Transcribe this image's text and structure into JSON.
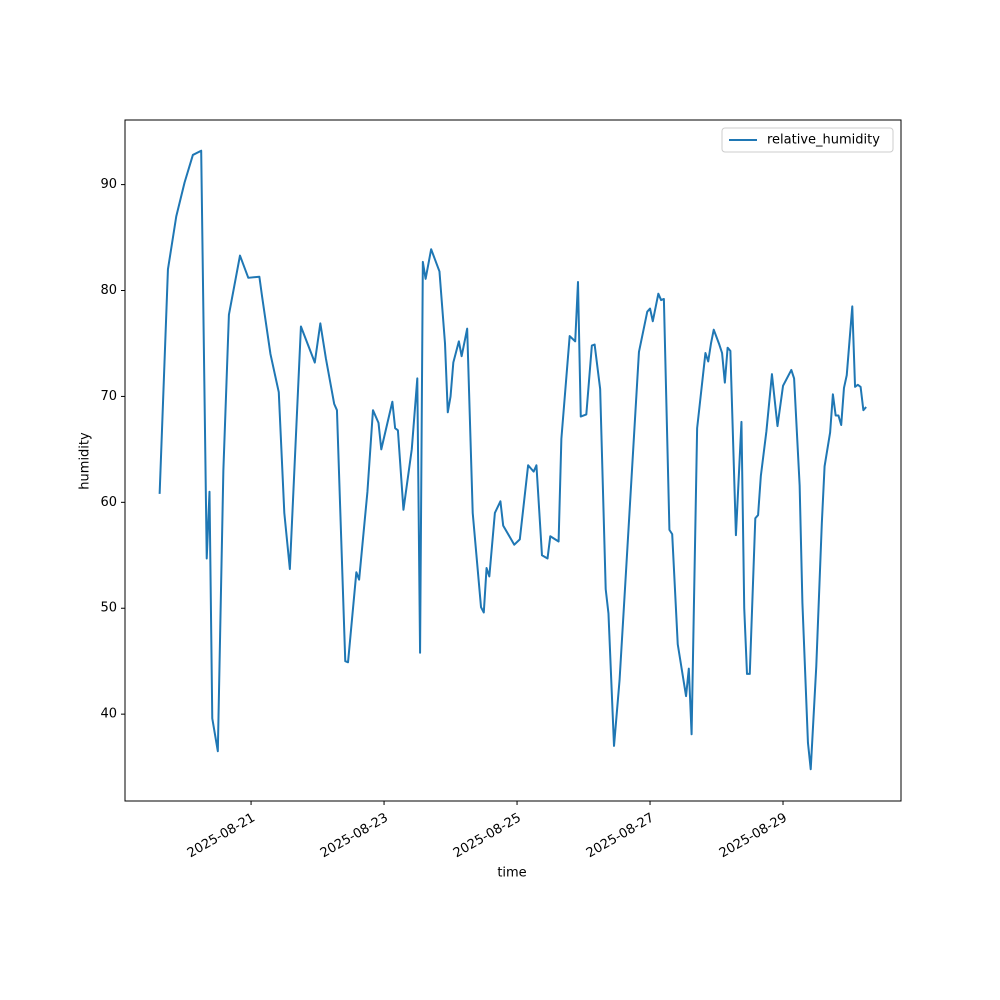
{
  "chart_data": {
    "type": "line",
    "x_label": "time",
    "y_label": "humidity",
    "x": [
      "2025-08-19 15:00",
      "2025-08-19 18:00",
      "2025-08-19 21:00",
      "2025-08-20 00:00",
      "2025-08-20 03:00",
      "2025-08-20 06:00",
      "2025-08-20 08:00",
      "2025-08-20 09:00",
      "2025-08-20 10:00",
      "2025-08-20 12:00",
      "2025-08-20 14:00",
      "2025-08-20 16:00",
      "2025-08-20 20:00",
      "2025-08-20 23:00",
      "2025-08-21 03:00",
      "2025-08-21 04:00",
      "2025-08-21 07:00",
      "2025-08-21 10:00",
      "2025-08-21 12:00",
      "2025-08-21 14:00",
      "2025-08-21 18:00",
      "2025-08-21 23:00",
      "2025-08-22 01:00",
      "2025-08-22 03:00",
      "2025-08-22 06:00",
      "2025-08-22 07:00",
      "2025-08-22 10:00",
      "2025-08-22 11:00",
      "2025-08-22 14:00",
      "2025-08-22 15:00",
      "2025-08-22 18:00",
      "2025-08-22 20:00",
      "2025-08-22 22:00",
      "2025-08-22 23:00",
      "2025-08-23 03:00",
      "2025-08-23 04:00",
      "2025-08-23 05:00",
      "2025-08-23 07:00",
      "2025-08-23 10:00",
      "2025-08-23 12:00",
      "2025-08-23 13:00",
      "2025-08-23 14:00",
      "2025-08-23 15:00",
      "2025-08-23 17:00",
      "2025-08-23 20:00",
      "2025-08-23 22:00",
      "2025-08-23 23:00",
      "2025-08-24 00:00",
      "2025-08-24 01:00",
      "2025-08-24 03:00",
      "2025-08-24 04:00",
      "2025-08-24 06:00",
      "2025-08-24 08:00",
      "2025-08-24 11:00",
      "2025-08-24 12:00",
      "2025-08-24 13:00",
      "2025-08-24 14:00",
      "2025-08-24 16:00",
      "2025-08-24 18:00",
      "2025-08-24 19:00",
      "2025-08-24 23:00",
      "2025-08-25 01:00",
      "2025-08-25 04:00",
      "2025-08-25 06:00",
      "2025-08-25 07:00",
      "2025-08-25 09:00",
      "2025-08-25 11:00",
      "2025-08-25 12:00",
      "2025-08-25 15:00",
      "2025-08-25 16:00",
      "2025-08-25 19:00",
      "2025-08-25 21:00",
      "2025-08-25 22:00",
      "2025-08-25 23:00",
      "2025-08-26 01:00",
      "2025-08-26 03:00",
      "2025-08-26 04:00",
      "2025-08-26 06:00",
      "2025-08-26 08:00",
      "2025-08-26 09:00",
      "2025-08-26 11:00",
      "2025-08-26 13:00",
      "2025-08-26 15:00",
      "2025-08-26 20:00",
      "2025-08-26 23:00",
      "2025-08-27 00:00",
      "2025-08-27 01:00",
      "2025-08-27 03:00",
      "2025-08-27 04:00",
      "2025-08-27 05:00",
      "2025-08-27 07:00",
      "2025-08-27 08:00",
      "2025-08-27 10:00",
      "2025-08-27 13:00",
      "2025-08-27 14:00",
      "2025-08-27 15:00",
      "2025-08-27 17:00",
      "2025-08-27 20:00",
      "2025-08-27 21:00",
      "2025-08-27 22:00",
      "2025-08-27 23:00",
      "2025-08-28 01:00",
      "2025-08-28 02:00",
      "2025-08-28 03:00",
      "2025-08-28 04:00",
      "2025-08-28 05:00",
      "2025-08-28 07:00",
      "2025-08-28 09:00",
      "2025-08-28 10:00",
      "2025-08-28 11:00",
      "2025-08-28 12:00",
      "2025-08-28 14:00",
      "2025-08-28 15:00",
      "2025-08-28 16:00",
      "2025-08-28 18:00",
      "2025-08-28 20:00",
      "2025-08-28 22:00",
      "2025-08-29 00:00",
      "2025-08-29 03:00",
      "2025-08-29 04:00",
      "2025-08-29 06:00",
      "2025-08-29 07:00",
      "2025-08-29 09:00",
      "2025-08-29 10:00",
      "2025-08-29 12:00",
      "2025-08-29 14:00",
      "2025-08-29 15:00",
      "2025-08-29 17:00",
      "2025-08-29 18:00",
      "2025-08-29 19:00",
      "2025-08-29 20:00",
      "2025-08-29 21:00",
      "2025-08-29 22:00",
      "2025-08-29 23:00",
      "2025-08-30 01:00",
      "2025-08-30 02:00",
      "2025-08-30 03:00",
      "2025-08-30 04:00",
      "2025-08-30 05:00",
      "2025-08-30 06:00"
    ],
    "series": [
      {
        "name": "relative_humidity",
        "color": "#1f77b4",
        "values": [
          60.8,
          82,
          87,
          90.2,
          92.8,
          93.2,
          54.7,
          61,
          39.6,
          36.5,
          63,
          77.7,
          83.3,
          81.2,
          81.3,
          79.4,
          74,
          70.4,
          59,
          53.7,
          76.6,
          73.2,
          76.9,
          73.6,
          69.3,
          68.7,
          45,
          44.9,
          53.4,
          52.7,
          61,
          68.7,
          67.5,
          65,
          69.5,
          67,
          66.8,
          59.3,
          65,
          71.7,
          45.8,
          82.7,
          81.1,
          83.9,
          81.8,
          75,
          68.5,
          70,
          73.2,
          75.2,
          73.8,
          76.4,
          59,
          50.1,
          49.6,
          53.8,
          53,
          59,
          60.1,
          57.8,
          56,
          56.5,
          63.5,
          62.9,
          63.5,
          55,
          54.7,
          56.8,
          56.3,
          66,
          75.7,
          75.2,
          80.8,
          68.1,
          68.3,
          74.8,
          74.9,
          70.7,
          51.8,
          49.5,
          37,
          43.2,
          52,
          74.2,
          78,
          78.3,
          77.1,
          79.7,
          79.1,
          79.2,
          57.4,
          57,
          46.6,
          41.7,
          44.3,
          38.1,
          67,
          74.1,
          73.3,
          75,
          76.3,
          74.9,
          74.1,
          71.3,
          74.6,
          74.3,
          56.9,
          67.6,
          50,
          43.8,
          43.8,
          58.5,
          58.8,
          62.5,
          66.7,
          72.1,
          67.2,
          71,
          72.5,
          71.7,
          61.6,
          50.5,
          37.3,
          34.8,
          44.5,
          58,
          63.4,
          66.6,
          70.2,
          68.2,
          68.2,
          67.3,
          70.8,
          72,
          78.5,
          70.9,
          71.1,
          70.9,
          68.7,
          69
        ]
      }
    ],
    "xlim": [
      "2025-08-19 02:30",
      "2025-08-30 18:35"
    ],
    "xticks": [
      "2025-08-21",
      "2025-08-23",
      "2025-08-25",
      "2025-08-27",
      "2025-08-29"
    ],
    "ylim": [
      31.8,
      96.1
    ],
    "yticks": [
      40,
      50,
      60,
      70,
      80,
      90
    ],
    "grid": false,
    "legend": "upper right"
  }
}
